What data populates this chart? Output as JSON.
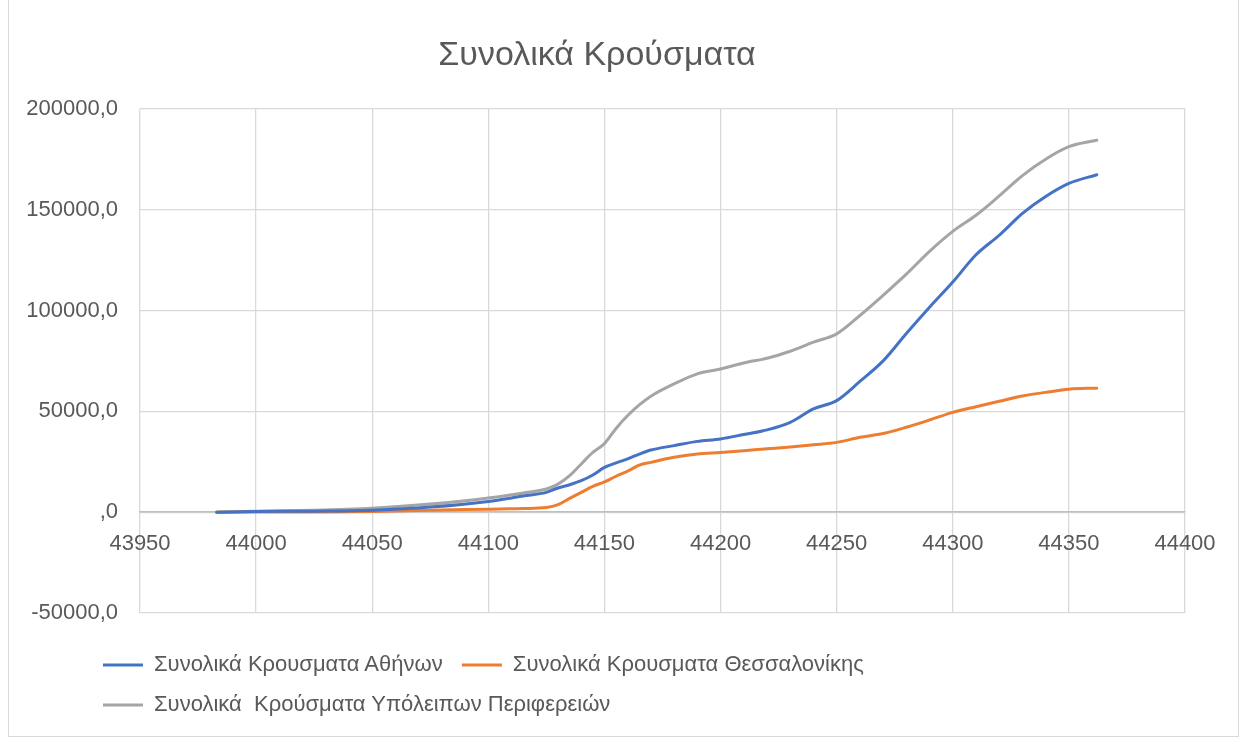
{
  "chart_data": {
    "type": "line",
    "title": "Συνολικά Κρούσματα",
    "x": [
      43983,
      44000,
      44025,
      44050,
      44075,
      44100,
      44115,
      44125,
      44130,
      44135,
      44140,
      44145,
      44150,
      44155,
      44160,
      44165,
      44170,
      44180,
      44190,
      44200,
      44210,
      44220,
      44230,
      44240,
      44250,
      44260,
      44270,
      44280,
      44290,
      44300,
      44310,
      44320,
      44330,
      44340,
      44350,
      44362
    ],
    "series": [
      {
        "name": "Συνολικά Κρουσματα Αθήνων",
        "color": "#4472c4",
        "values": [
          0,
          300,
          500,
          1000,
          2500,
          5300,
          8000,
          9800,
          12000,
          13600,
          15600,
          18400,
          22200,
          24400,
          26400,
          28800,
          30800,
          33000,
          35100,
          36300,
          38500,
          40800,
          44500,
          51200,
          55300,
          64800,
          75000,
          88600,
          101600,
          114100,
          127600,
          137300,
          148100,
          156500,
          163000,
          167300
        ]
      },
      {
        "name": "Συνολικά Κρουσματα Θεσσαλονίκης",
        "color": "#ed7d31",
        "values": [
          0,
          100,
          100,
          300,
          1000,
          1500,
          1800,
          2300,
          3700,
          6800,
          9800,
          12800,
          15000,
          17800,
          20300,
          23300,
          24700,
          27200,
          28800,
          29600,
          30500,
          31400,
          32300,
          33400,
          34600,
          37100,
          39000,
          42100,
          45700,
          49500,
          52300,
          55000,
          57600,
          59400,
          61000,
          61500
        ]
      },
      {
        "name": "Συνολικά  Κρούσματα Υπόλειπων Περιφερειών",
        "color": "#a5a5a5",
        "values": [
          0,
          500,
          1000,
          2000,
          4000,
          7000,
          9500,
          11500,
          13900,
          18100,
          23900,
          29600,
          34000,
          41500,
          47900,
          53200,
          57500,
          63600,
          68600,
          71000,
          74000,
          76300,
          79800,
          84300,
          88400,
          97500,
          107500,
          118000,
          129300,
          139200,
          147200,
          156800,
          166900,
          175000,
          181200,
          184400
        ]
      }
    ],
    "xlim": [
      43950,
      44400
    ],
    "xticks": [
      43950,
      44000,
      44050,
      44100,
      44150,
      44200,
      44250,
      44300,
      44350,
      44400
    ],
    "ylim": [
      -50000,
      200000
    ],
    "yticks": [
      {
        "value": -50000,
        "label": "-50000,0"
      },
      {
        "value": 0,
        "label": ",0"
      },
      {
        "value": 50000,
        "label": "50000,0"
      },
      {
        "value": 100000,
        "label": "100000,0"
      },
      {
        "value": 150000,
        "label": "150000,0"
      },
      {
        "value": 200000,
        "label": "200000,0"
      }
    ],
    "grid": true,
    "legend": "bottom"
  }
}
